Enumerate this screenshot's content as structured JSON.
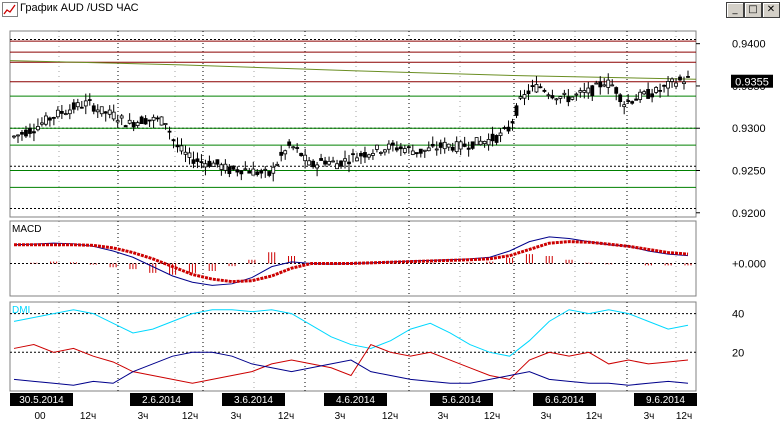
{
  "window": {
    "title": "График AUD /USD  ЧАС",
    "minimize_glyph": "_",
    "maximize_glyph": "□",
    "close_glyph": "✕"
  },
  "icons": {
    "app": "chart-icon",
    "minimize": "minimize-icon",
    "maximize": "maximize-icon",
    "close": "close-icon"
  },
  "colors": {
    "background": "#ffffff",
    "candles": "#000000",
    "resistance": "#8b0000",
    "support": "#008000",
    "moving_average": "#6b8e23",
    "price_tag_bg": "#000000",
    "price_tag_text": "#ffffff",
    "macd_line": "#00008b",
    "macd_signal": "#cc0000",
    "macd_hist": "#cc0000",
    "dmi_adx": "#00d8ff",
    "dmi_plus": "#cc0000",
    "dmi_minus": "#00008b",
    "grid": "#000000"
  },
  "chart_data": [
    {
      "type": "candlestick",
      "title": "",
      "panel": "price",
      "ylim": [
        0.9195,
        0.9415
      ],
      "y_ticks": [
        "0.9400",
        "0.9350",
        "0.9300",
        "0.9250",
        "0.9200"
      ],
      "current_price_label": "0.9355",
      "current_price": 0.9355,
      "dashed_levels": [
        0.9405,
        0.93,
        0.9255,
        0.9205
      ],
      "red_levels": [
        0.9403,
        0.939,
        0.9378,
        0.9355
      ],
      "green_levels": [
        0.9338,
        0.93,
        0.928,
        0.925,
        0.923
      ],
      "moving_average": [
        [
          0,
          0.938
        ],
        [
          0.25,
          0.9375
        ],
        [
          0.5,
          0.9368
        ],
        [
          0.75,
          0.9362
        ],
        [
          1.0,
          0.9358
        ]
      ],
      "close_path": [
        [
          0.0,
          0.929
        ],
        [
          0.03,
          0.93
        ],
        [
          0.06,
          0.9315
        ],
        [
          0.09,
          0.9325
        ],
        [
          0.11,
          0.933
        ],
        [
          0.13,
          0.932
        ],
        [
          0.15,
          0.9315
        ],
        [
          0.17,
          0.9305
        ],
        [
          0.19,
          0.931
        ],
        [
          0.21,
          0.931
        ],
        [
          0.225,
          0.9308
        ],
        [
          0.24,
          0.928
        ],
        [
          0.26,
          0.9265
        ],
        [
          0.28,
          0.926
        ],
        [
          0.3,
          0.9258
        ],
        [
          0.32,
          0.925
        ],
        [
          0.34,
          0.9252
        ],
        [
          0.36,
          0.9248
        ],
        [
          0.38,
          0.9245
        ],
        [
          0.395,
          0.9265
        ],
        [
          0.41,
          0.928
        ],
        [
          0.425,
          0.927
        ],
        [
          0.44,
          0.9255
        ],
        [
          0.46,
          0.9262
        ],
        [
          0.48,
          0.9258
        ],
        [
          0.5,
          0.9265
        ],
        [
          0.52,
          0.927
        ],
        [
          0.54,
          0.9275
        ],
        [
          0.56,
          0.9278
        ],
        [
          0.58,
          0.9276
        ],
        [
          0.6,
          0.9272
        ],
        [
          0.62,
          0.9275
        ],
        [
          0.64,
          0.928
        ],
        [
          0.66,
          0.9278
        ],
        [
          0.68,
          0.9282
        ],
        [
          0.7,
          0.9285
        ],
        [
          0.72,
          0.929
        ],
        [
          0.735,
          0.93
        ],
        [
          0.75,
          0.933
        ],
        [
          0.765,
          0.9345
        ],
        [
          0.78,
          0.935
        ],
        [
          0.8,
          0.934
        ],
        [
          0.82,
          0.9335
        ],
        [
          0.84,
          0.934
        ],
        [
          0.86,
          0.9345
        ],
        [
          0.875,
          0.9355
        ],
        [
          0.89,
          0.935
        ],
        [
          0.905,
          0.933
        ],
        [
          0.92,
          0.9335
        ],
        [
          0.94,
          0.934
        ],
        [
          0.96,
          0.9345
        ],
        [
          0.98,
          0.9355
        ],
        [
          1.0,
          0.9358
        ]
      ]
    },
    {
      "type": "line",
      "title": "MACD",
      "panel": "macd",
      "y_tick": "+0.000",
      "ylim": [
        -1,
        1
      ],
      "series": [
        {
          "role": "macd",
          "values": [
            0.6,
            0.62,
            0.65,
            0.63,
            0.55,
            0.4,
            0.2,
            -0.1,
            -0.4,
            -0.6,
            -0.7,
            -0.65,
            -0.45,
            -0.1,
            0.05,
            0.0,
            -0.02,
            0.0,
            0.02,
            0.05,
            0.08,
            0.1,
            0.12,
            0.15,
            0.2,
            0.4,
            0.7,
            0.85,
            0.8,
            0.7,
            0.6,
            0.55,
            0.4,
            0.3,
            0.25
          ]
        },
        {
          "role": "signal",
          "values": [
            0.6,
            0.6,
            0.6,
            0.6,
            0.58,
            0.5,
            0.35,
            0.15,
            -0.1,
            -0.35,
            -0.5,
            -0.58,
            -0.55,
            -0.4,
            -0.15,
            0.0,
            0.0,
            0.0,
            0.02,
            0.04,
            0.06,
            0.08,
            0.1,
            0.12,
            0.15,
            0.25,
            0.45,
            0.65,
            0.7,
            0.68,
            0.62,
            0.55,
            0.45,
            0.35,
            0.3
          ]
        },
        {
          "role": "histogram",
          "values": [
            0.0,
            0.02,
            0.05,
            0.03,
            -0.03,
            -0.1,
            -0.15,
            -0.25,
            -0.3,
            -0.25,
            -0.2,
            -0.07,
            0.1,
            0.3,
            0.2,
            0.0,
            -0.02,
            0.0,
            0.0,
            0.01,
            0.02,
            0.02,
            0.02,
            0.03,
            0.05,
            0.15,
            0.25,
            0.2,
            0.1,
            0.02,
            -0.02,
            0.0,
            -0.05,
            -0.05,
            -0.05
          ]
        }
      ]
    },
    {
      "type": "line",
      "title": "DMI",
      "panel": "dmi",
      "y_ticks": [
        "40",
        "20"
      ],
      "ylim": [
        0,
        46
      ],
      "series": [
        {
          "role": "adx",
          "values": [
            36,
            38,
            40,
            42,
            40,
            35,
            30,
            32,
            36,
            40,
            42,
            42,
            41,
            42,
            40,
            34,
            28,
            24,
            22,
            26,
            32,
            35,
            30,
            24,
            20,
            18,
            26,
            36,
            42,
            40,
            42,
            40,
            36,
            32,
            34
          ]
        },
        {
          "role": "+di",
          "values": [
            22,
            24,
            20,
            22,
            18,
            15,
            10,
            8,
            6,
            4,
            6,
            8,
            10,
            14,
            16,
            14,
            12,
            8,
            24,
            20,
            18,
            20,
            16,
            12,
            8,
            6,
            16,
            20,
            18,
            20,
            14,
            16,
            14,
            15,
            16
          ]
        },
        {
          "role": "-di",
          "values": [
            6,
            5,
            4,
            3,
            5,
            4,
            10,
            14,
            18,
            20,
            20,
            18,
            14,
            12,
            10,
            12,
            14,
            16,
            10,
            8,
            6,
            5,
            4,
            4,
            6,
            8,
            10,
            6,
            5,
            4,
            4,
            3,
            4,
            5,
            4
          ]
        }
      ]
    }
  ],
  "time_axis": {
    "date_labels": [
      "30.5.2014",
      "2.6.2014",
      "3.6.2014",
      "4.6.2014",
      "5.6.2014",
      "6.6.2014",
      "9.6.2014"
    ],
    "hour_labels": [
      "00",
      "12ч",
      "3ч",
      "12ч",
      "3ч",
      "12ч",
      "3ч",
      "12ч",
      "3ч",
      "12ч",
      "3ч",
      "12ч",
      "3ч",
      "12ч"
    ]
  }
}
